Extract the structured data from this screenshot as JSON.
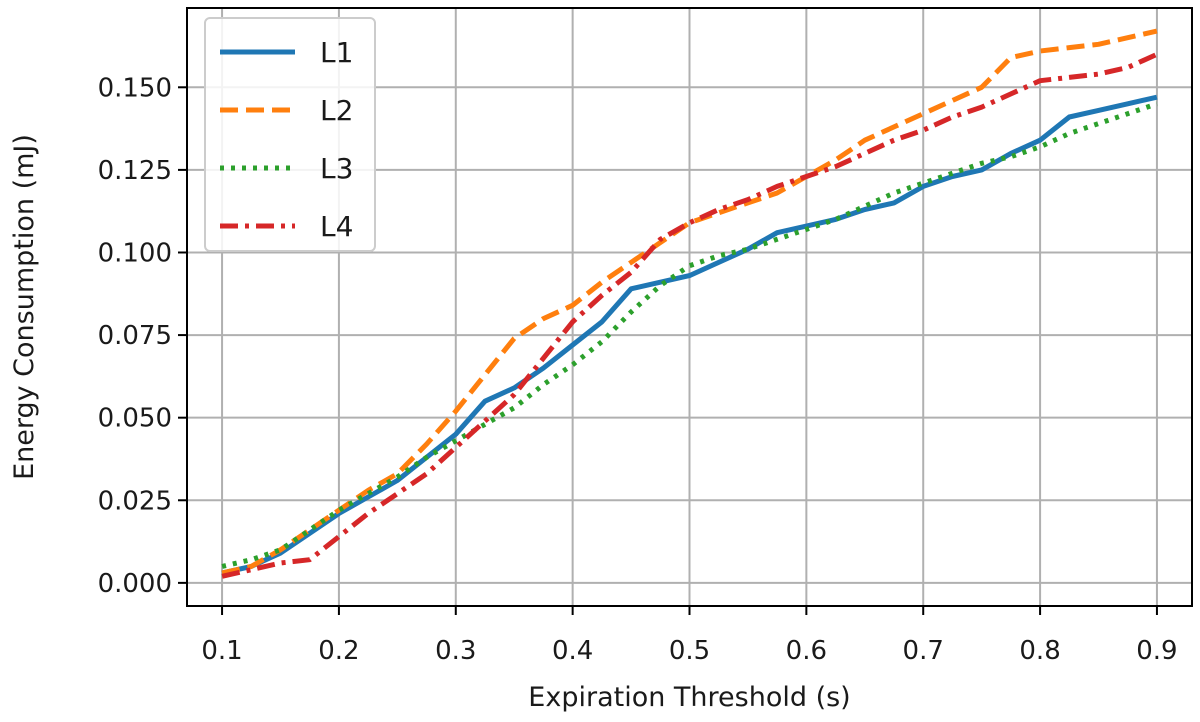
{
  "chart_data": {
    "type": "line",
    "xlabel": "Expiration Threshold (s)",
    "ylabel": "Energy Consumption (mJ)",
    "xlim": [
      0.07,
      0.93
    ],
    "ylim": [
      -0.007,
      0.174
    ],
    "xticks": [
      "0.1",
      "0.2",
      "0.3",
      "0.4",
      "0.5",
      "0.6",
      "0.7",
      "0.8",
      "0.9"
    ],
    "yticks": [
      "0.000",
      "0.025",
      "0.050",
      "0.075",
      "0.100",
      "0.125",
      "0.150"
    ],
    "grid": true,
    "legend_position": "upper-left",
    "series": [
      {
        "name": "L1",
        "color": "#1f77b4",
        "dash": "solid",
        "x": [
          0.1,
          0.125,
          0.15,
          0.175,
          0.2,
          0.225,
          0.25,
          0.275,
          0.3,
          0.325,
          0.35,
          0.375,
          0.4,
          0.425,
          0.45,
          0.475,
          0.5,
          0.525,
          0.55,
          0.575,
          0.6,
          0.625,
          0.65,
          0.675,
          0.7,
          0.725,
          0.75,
          0.775,
          0.8,
          0.825,
          0.85,
          0.875,
          0.9
        ],
        "y": [
          0.003,
          0.005,
          0.009,
          0.015,
          0.021,
          0.026,
          0.031,
          0.038,
          0.045,
          0.055,
          0.059,
          0.065,
          0.072,
          0.079,
          0.089,
          0.091,
          0.093,
          0.097,
          0.101,
          0.106,
          0.108,
          0.11,
          0.113,
          0.115,
          0.12,
          0.123,
          0.125,
          0.13,
          0.134,
          0.141,
          0.143,
          0.145,
          0.147
        ]
      },
      {
        "name": "L2",
        "color": "#ff7f0e",
        "dash": "dashed",
        "x": [
          0.1,
          0.125,
          0.15,
          0.175,
          0.2,
          0.225,
          0.25,
          0.275,
          0.3,
          0.325,
          0.35,
          0.375,
          0.4,
          0.425,
          0.45,
          0.475,
          0.5,
          0.525,
          0.55,
          0.575,
          0.6,
          0.625,
          0.65,
          0.675,
          0.7,
          0.725,
          0.75,
          0.775,
          0.8,
          0.825,
          0.85,
          0.875,
          0.9
        ],
        "y": [
          0.003,
          0.005,
          0.01,
          0.016,
          0.022,
          0.028,
          0.033,
          0.042,
          0.052,
          0.063,
          0.074,
          0.08,
          0.084,
          0.091,
          0.097,
          0.103,
          0.109,
          0.112,
          0.115,
          0.118,
          0.123,
          0.128,
          0.134,
          0.138,
          0.142,
          0.146,
          0.15,
          0.159,
          0.161,
          0.162,
          0.163,
          0.165,
          0.167
        ]
      },
      {
        "name": "L3",
        "color": "#2ca02c",
        "dash": "dotted",
        "x": [
          0.1,
          0.125,
          0.15,
          0.175,
          0.2,
          0.225,
          0.25,
          0.275,
          0.3,
          0.325,
          0.35,
          0.375,
          0.4,
          0.425,
          0.45,
          0.475,
          0.5,
          0.525,
          0.55,
          0.575,
          0.6,
          0.625,
          0.65,
          0.675,
          0.7,
          0.725,
          0.75,
          0.775,
          0.8,
          0.825,
          0.85,
          0.875,
          0.9
        ],
        "y": [
          0.005,
          0.007,
          0.01,
          0.016,
          0.022,
          0.027,
          0.032,
          0.038,
          0.043,
          0.048,
          0.053,
          0.06,
          0.066,
          0.073,
          0.082,
          0.09,
          0.096,
          0.099,
          0.101,
          0.104,
          0.107,
          0.11,
          0.114,
          0.118,
          0.121,
          0.124,
          0.127,
          0.129,
          0.132,
          0.136,
          0.139,
          0.142,
          0.145
        ]
      },
      {
        "name": "L4",
        "color": "#d62728",
        "dash": "dashdot",
        "x": [
          0.1,
          0.125,
          0.15,
          0.175,
          0.2,
          0.225,
          0.25,
          0.275,
          0.3,
          0.325,
          0.35,
          0.375,
          0.4,
          0.425,
          0.45,
          0.475,
          0.5,
          0.525,
          0.55,
          0.575,
          0.6,
          0.625,
          0.65,
          0.675,
          0.7,
          0.725,
          0.75,
          0.775,
          0.8,
          0.825,
          0.85,
          0.875,
          0.9
        ],
        "y": [
          0.002,
          0.004,
          0.006,
          0.007,
          0.014,
          0.021,
          0.027,
          0.033,
          0.041,
          0.049,
          0.057,
          0.068,
          0.079,
          0.087,
          0.094,
          0.104,
          0.109,
          0.113,
          0.116,
          0.12,
          0.123,
          0.126,
          0.13,
          0.134,
          0.137,
          0.141,
          0.144,
          0.148,
          0.152,
          0.153,
          0.154,
          0.156,
          0.16
        ]
      }
    ]
  }
}
